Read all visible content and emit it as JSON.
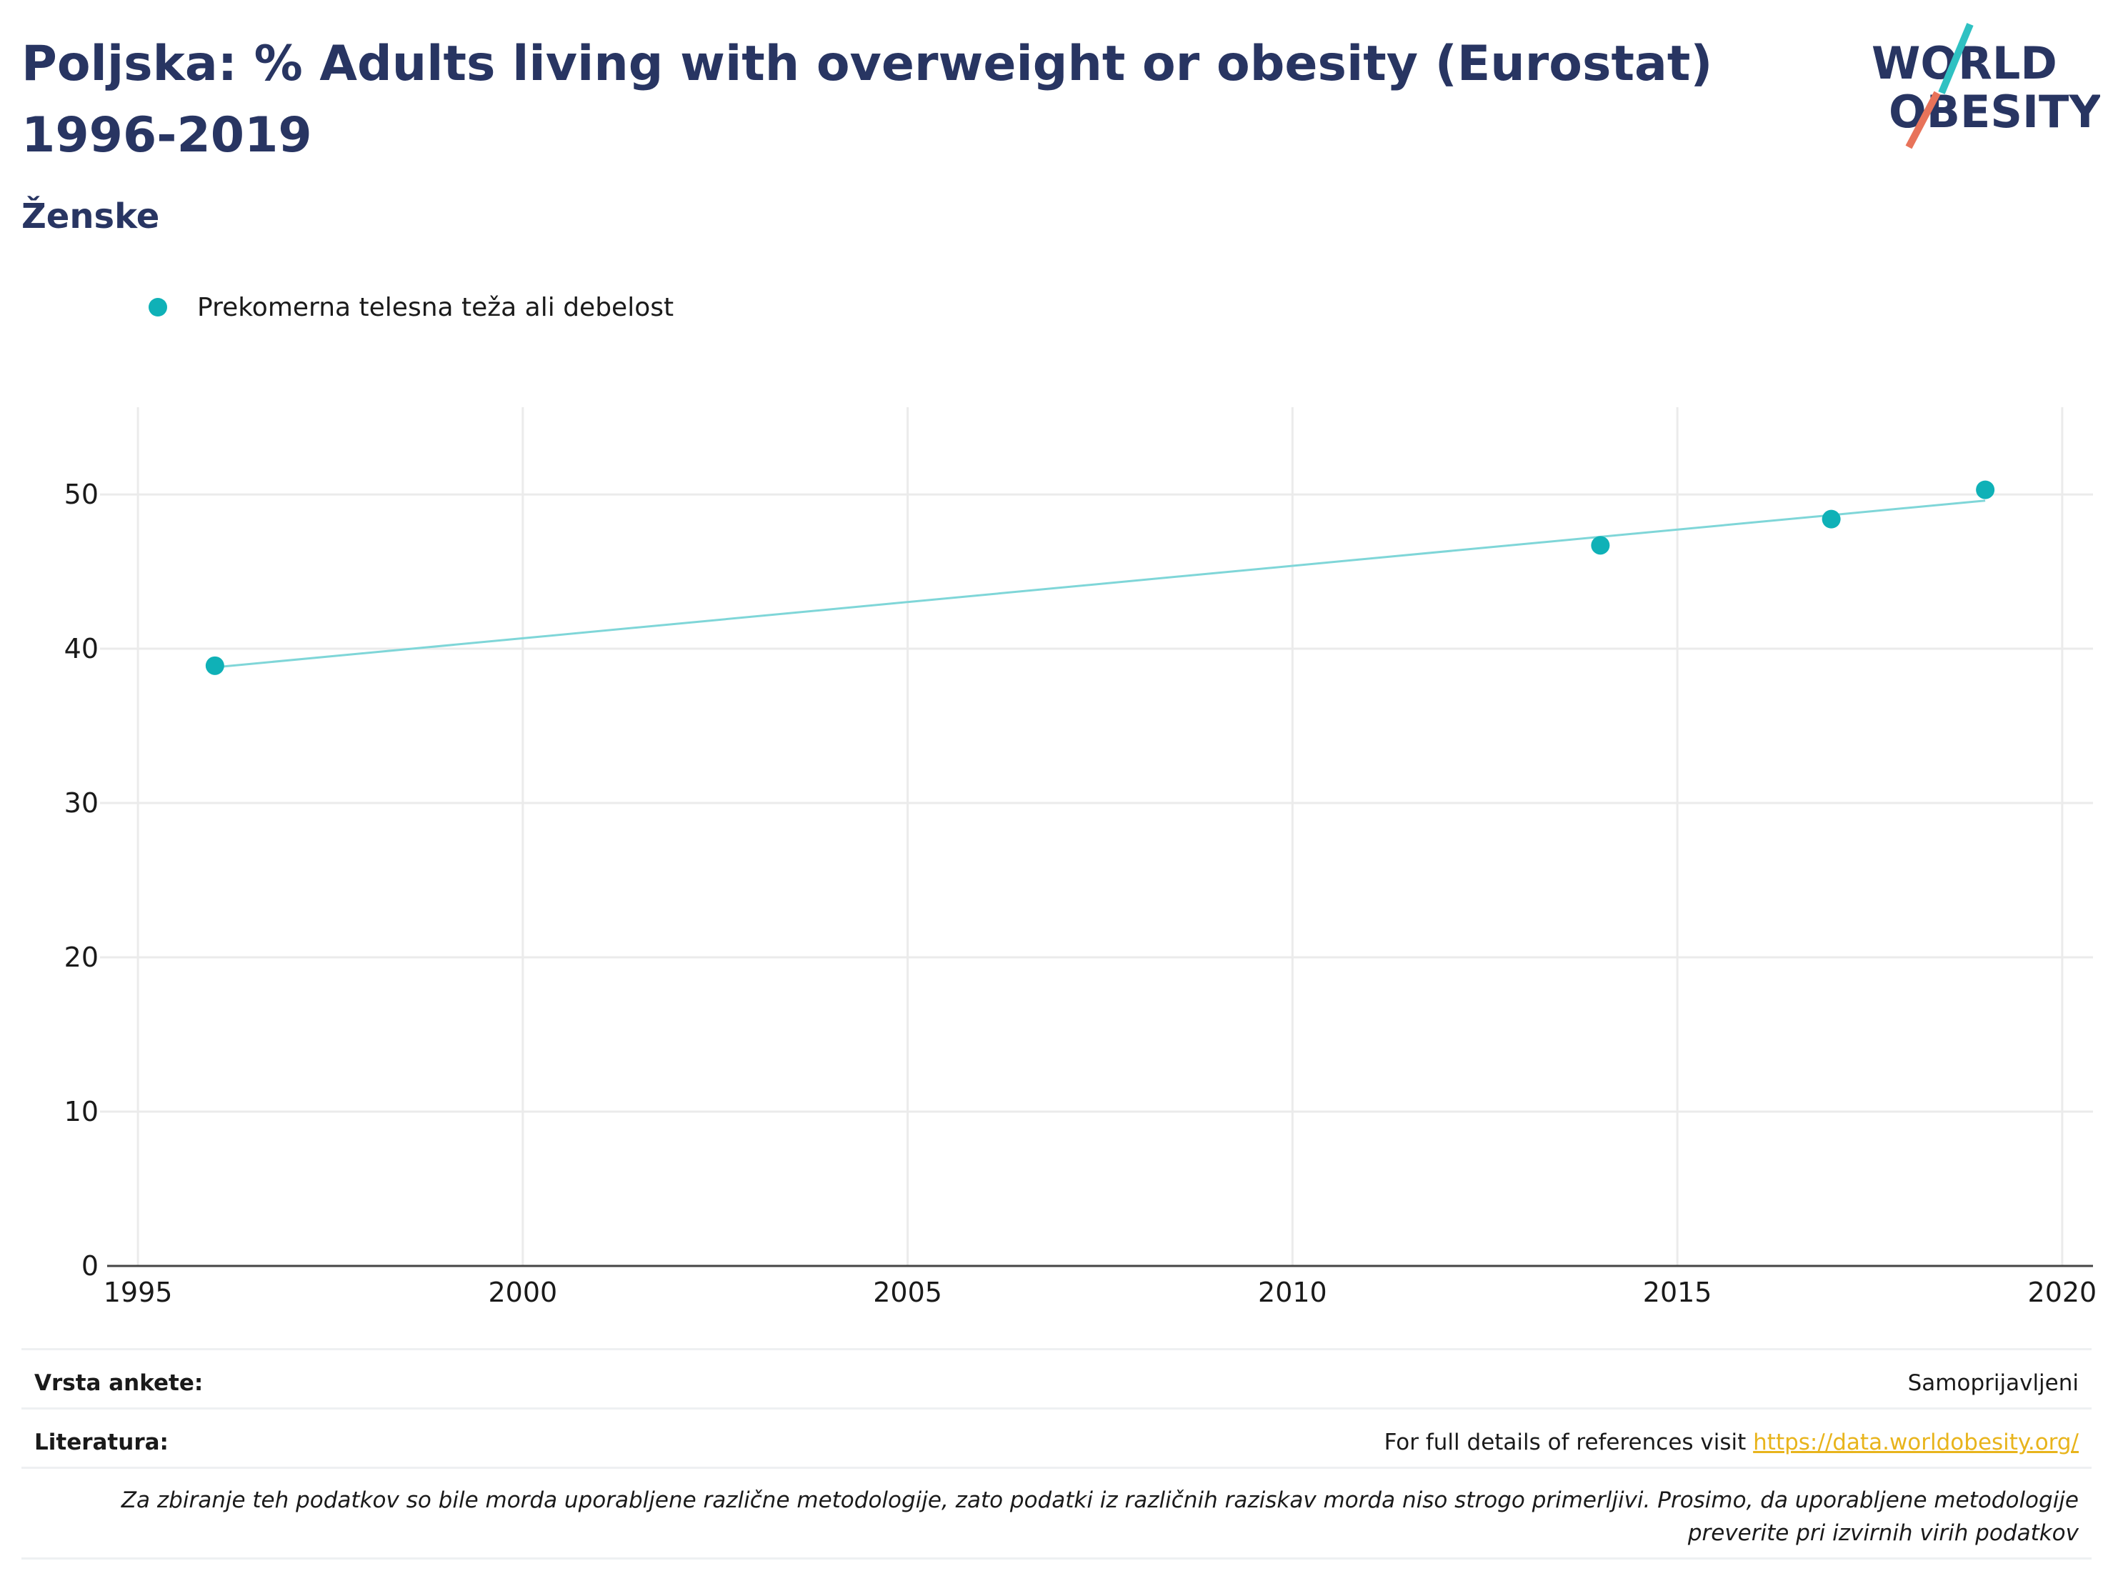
{
  "header": {
    "title": "Poljska: % Adults living with overweight or obesity (Eurostat) 1996-2019",
    "subtitle": "Ženske"
  },
  "logo": {
    "line1": "WORLD",
    "line2": "OBESITY",
    "colors": {
      "navy": "#283562",
      "teal": "#2fc1c2",
      "coral": "#e8735a"
    }
  },
  "legend": {
    "label": "Prekomerna telesna teža ali debelost",
    "color": "#0fb1b7"
  },
  "chart_data": {
    "type": "scatter",
    "x": [
      1996,
      2014,
      2017,
      2019
    ],
    "series": [
      {
        "name": "Prekomerna telesna teža ali debelost",
        "values": [
          38.9,
          46.7,
          48.4,
          50.3
        ]
      }
    ],
    "trendline": {
      "x": [
        1996,
        2019
      ],
      "y": [
        38.8,
        49.6
      ],
      "color": "#7fd6d8"
    },
    "xlim": [
      1994.6,
      2020.4
    ],
    "ylim": [
      0,
      53.8
    ],
    "xticks": [
      1995,
      2000,
      2005,
      2010,
      2015,
      2020
    ],
    "yticks": [
      0,
      10,
      20,
      30,
      40,
      50
    ],
    "grid": true,
    "legend_position": "top-left",
    "colors": {
      "point": "#0fb1b7",
      "grid": "#ebebeb",
      "axis": "#444444"
    }
  },
  "footer": {
    "survey_label": "Vrsta ankete:",
    "survey_value": "Samoprijavljeni",
    "refs_label": "Literatura:",
    "refs_text": "For full details of references visit ",
    "refs_link": "https://data.worldobesity.org/",
    "note": "Za zbiranje teh podatkov so bile morda uporabljene različne metodologije, zato podatki iz različnih raziskav morda niso strogo primerljivi. Prosimo, da uporabljene metodologije preverite pri izvirnih virih podatkov"
  }
}
